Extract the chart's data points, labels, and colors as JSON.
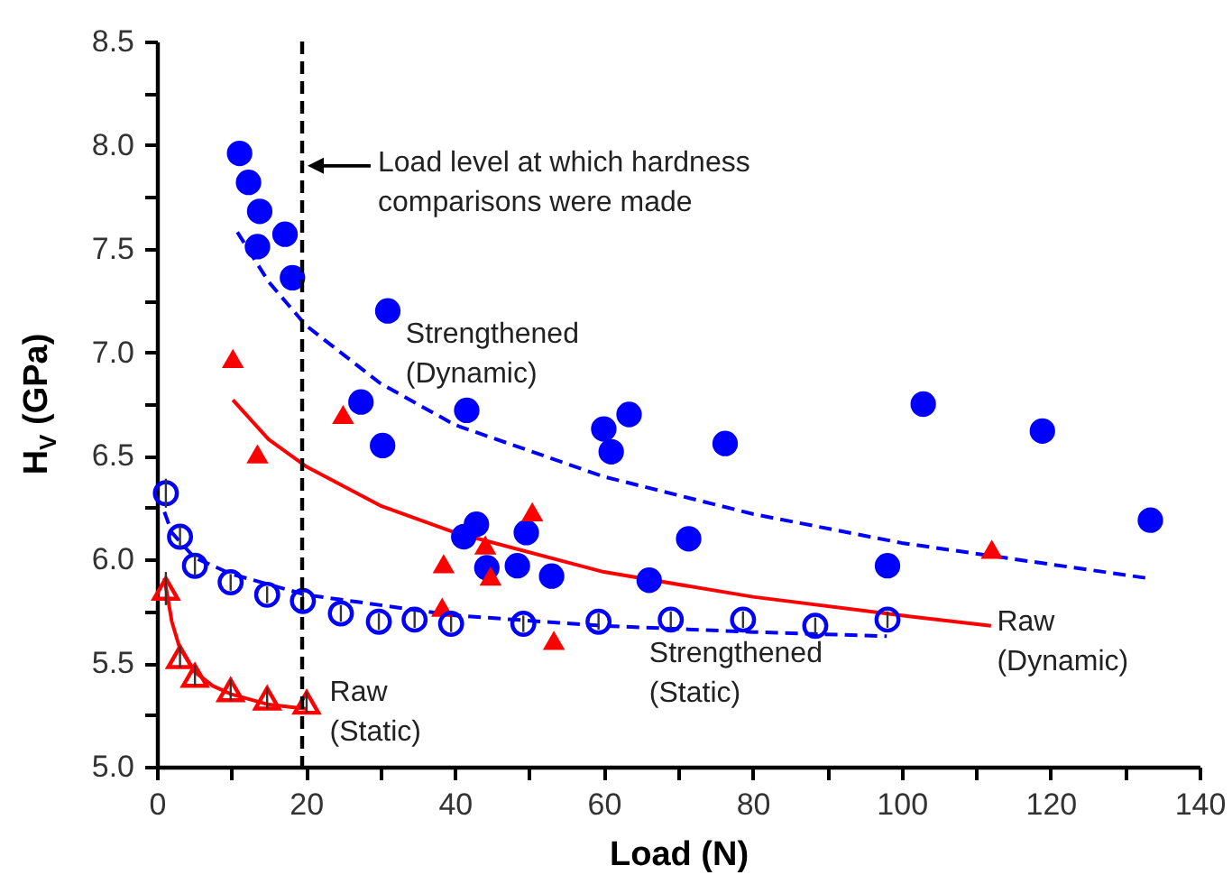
{
  "chart_data": {
    "type": "scatter",
    "xlabel": "Load (N)",
    "ylabel": "H$_{V}$ (GPa)",
    "xlim": [
      0,
      140
    ],
    "ylim": [
      5,
      8.5
    ],
    "xticks": [
      0,
      {
        "value": 10,
        "label": null
      },
      20,
      {
        "value": 30,
        "label": null
      },
      40,
      {
        "value": 50,
        "label": null
      },
      60,
      {
        "value": 70,
        "label": null
      },
      80,
      {
        "value": 90,
        "label": null
      },
      100,
      {
        "value": 110,
        "label": null
      },
      120,
      {
        "value": 130,
        "label": null
      },
      140
    ],
    "yticks": [
      {
        "value": 5,
        "label": "5.0"
      },
      {
        "value": 5.25,
        "label": null
      },
      {
        "value": 5.5,
        "label": "5.5"
      },
      {
        "value": 5.75,
        "label": null
      },
      {
        "value": 6,
        "label": "6.0"
      },
      {
        "value": 6.25,
        "label": null
      },
      {
        "value": 6.5,
        "label": "6.5"
      },
      {
        "value": 6.75,
        "label": null
      },
      {
        "value": 7,
        "label": "7.0"
      },
      {
        "value": 7.25,
        "label": null
      },
      {
        "value": 7.5,
        "label": "7.5"
      },
      {
        "value": 7.75,
        "label": null
      },
      {
        "value": 8,
        "label": "8.0"
      },
      {
        "value": 8.25,
        "label": null
      },
      {
        "value": 8.5,
        "label": "8.5"
      }
    ],
    "grid": false,
    "series": [
      {
        "name": "Strengthened (Dynamic)",
        "color": "#0000ff",
        "marker": "circle",
        "x": [
          11.1,
          12.3,
          13.8,
          13.5,
          17.2,
          18.2,
          31.0,
          27.4,
          30.3,
          41.6,
          60.0,
          61.0,
          63.4,
          102.9,
          118.9,
          133.4,
          76.3,
          71.4,
          98.1,
          66.1,
          41.2,
          42.9,
          44.3,
          48.4,
          49.6,
          53.0
        ],
        "values": [
          7.96,
          7.82,
          7.68,
          7.51,
          7.57,
          7.36,
          7.2,
          6.76,
          6.55,
          6.72,
          6.63,
          6.52,
          6.7,
          6.75,
          6.62,
          6.19,
          6.56,
          6.1,
          5.97,
          5.9,
          6.11,
          6.17,
          5.96,
          5.97,
          6.13,
          5.92
        ]
      },
      {
        "name": "Raw (Dynamic)",
        "color": "#ff0000",
        "marker": "triangle",
        "x": [
          10.2,
          13.5,
          25.0,
          38.5,
          38.3,
          44.1,
          44.8,
          50.4,
          53.3,
          112.1
        ],
        "values": [
          6.97,
          6.51,
          6.7,
          5.98,
          5.77,
          6.07,
          5.92,
          6.23,
          5.61,
          6.05
        ]
      },
      {
        "name": "Strengthened (Static)",
        "color": "#0000ff",
        "marker": "circle",
        "x": [
          1.2,
          3.1,
          5.1,
          9.9,
          14.8,
          19.6,
          24.7,
          29.8,
          34.6,
          39.5,
          49.2,
          59.3,
          69.0,
          78.7,
          88.4,
          98.1
        ],
        "values": [
          6.32,
          6.11,
          5.97,
          5.89,
          5.83,
          5.8,
          5.74,
          5.7,
          5.71,
          5.69,
          5.69,
          5.7,
          5.71,
          5.71,
          5.68,
          5.71
        ],
        "errors": [
          0.07,
          0.05,
          0.05,
          0.04,
          0.04,
          0.04,
          0.04,
          0.04,
          0.04,
          0.04,
          0.04,
          0.04,
          0.04,
          0.04,
          0.04,
          0.04
        ]
      },
      {
        "name": "Raw (Static)",
        "color": "#ff0000",
        "marker": "triangle",
        "x": [
          1.2,
          3.1,
          5.1,
          9.9,
          14.8,
          20.1
        ],
        "values": [
          5.86,
          5.53,
          5.44,
          5.37,
          5.33,
          5.31
        ],
        "errors": [
          0.08,
          0.05,
          0.05,
          0.05,
          0.05,
          0.05
        ]
      },
      {
        "type": "line",
        "color": "#0000ff",
        "line_style": "dashed",
        "x": [
          10.8,
          15,
          20,
          30,
          40,
          60,
          80,
          100,
          133
        ],
        "values": [
          7.58,
          7.34,
          7.13,
          6.85,
          6.65,
          6.4,
          6.22,
          6.08,
          5.91
        ]
      },
      {
        "type": "line",
        "color": "#ff0000",
        "line_style": "solid",
        "x": [
          10.2,
          15,
          20,
          30,
          40,
          60,
          80,
          100,
          112
        ],
        "values": [
          6.77,
          6.58,
          6.45,
          6.26,
          6.13,
          5.94,
          5.82,
          5.73,
          5.68
        ]
      },
      {
        "type": "line",
        "color": "#0000ff",
        "line_style": "dashed",
        "x": [
          1,
          2,
          5,
          10,
          20,
          40,
          60,
          80,
          98
        ],
        "values": [
          6.23,
          6.13,
          6.01,
          5.93,
          5.83,
          5.73,
          5.68,
          5.65,
          5.63
        ]
      },
      {
        "type": "line",
        "color": "#ff0000",
        "line_style": "solid",
        "x": [
          1,
          2,
          3,
          5,
          7.5,
          10,
          15,
          20
        ],
        "values": [
          5.91,
          5.7,
          5.58,
          5.46,
          5.39,
          5.35,
          5.3,
          5.28
        ]
      }
    ],
    "ref_lines": [
      {
        "axis": "x",
        "value": 19.5,
        "color": "#000000",
        "line_style": "dashed"
      }
    ],
    "annotations": [
      {
        "text": "Load level at which hardness comparisons were made",
        "x": 19.5,
        "y": 7.9
      }
    ]
  }
}
